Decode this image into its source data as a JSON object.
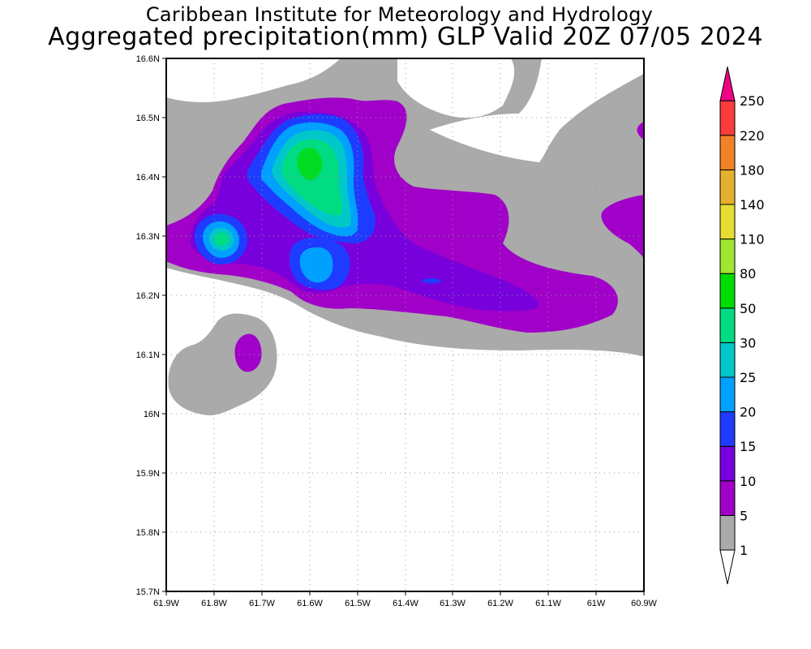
{
  "title": {
    "line1": "Caribbean Institute for Meteorology and Hydrology",
    "line2": "Aggregated precipitation(mm) GLP Valid 20Z 07/05 2024"
  },
  "axes": {
    "lat_labels": [
      "16.6N",
      "16.5N",
      "16.4N",
      "16.3N",
      "16.2N",
      "16.1N",
      "16N",
      "15.9N",
      "15.8N",
      "15.7N"
    ],
    "lon_labels": [
      "61.9W",
      "61.8W",
      "61.7W",
      "61.6W",
      "61.5W",
      "61.4W",
      "61.3W",
      "61.2W",
      "61.1W",
      "61W",
      "60.9W"
    ]
  },
  "legend": {
    "levels": [
      {
        "label": "1",
        "color": "#ffffff"
      },
      {
        "label": "5",
        "color": "#aaaaaa"
      },
      {
        "label": "10",
        "color": "#a000c8"
      },
      {
        "label": "15",
        "color": "#7800dc"
      },
      {
        "label": "20",
        "color": "#1e3cff"
      },
      {
        "label": "25",
        "color": "#00a0ff"
      },
      {
        "label": "30",
        "color": "#00c8c8"
      },
      {
        "label": "50",
        "color": "#00dc82"
      },
      {
        "label": "80",
        "color": "#00dc00"
      },
      {
        "label": "110",
        "color": "#a0e632"
      },
      {
        "label": "140",
        "color": "#e6dc32"
      },
      {
        "label": "180",
        "color": "#e6af2d"
      },
      {
        "label": "220",
        "color": "#f08228"
      },
      {
        "label": "250",
        "color": "#fa3c3c"
      }
    ],
    "top_color": "#f00082"
  }
}
